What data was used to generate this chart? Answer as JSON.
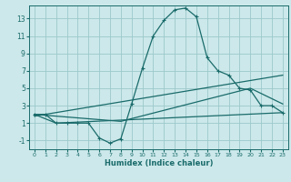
{
  "xlabel": "Humidex (Indice chaleur)",
  "bg_color": "#cce8ea",
  "grid_color": "#9cc8ca",
  "line_color": "#1a6b6b",
  "xlim": [
    -0.5,
    23.5
  ],
  "ylim": [
    -2,
    14.5
  ],
  "xticks": [
    0,
    1,
    2,
    3,
    4,
    5,
    6,
    7,
    8,
    9,
    10,
    11,
    12,
    13,
    14,
    15,
    16,
    17,
    18,
    19,
    20,
    21,
    22,
    23
  ],
  "yticks": [
    -1,
    1,
    3,
    5,
    7,
    9,
    11,
    13
  ],
  "curve1_x": [
    0,
    1,
    2,
    3,
    4,
    5,
    6,
    7,
    8,
    9,
    10,
    11,
    12,
    13,
    14,
    15,
    16,
    17,
    18,
    19,
    20,
    21,
    22,
    23
  ],
  "curve1_y": [
    2.0,
    2.0,
    1.0,
    1.0,
    1.0,
    1.0,
    -0.7,
    -1.3,
    -0.8,
    3.2,
    7.3,
    11.0,
    12.8,
    14.0,
    14.2,
    13.2,
    8.5,
    7.0,
    6.5,
    5.0,
    4.8,
    3.0,
    3.0,
    2.2
  ],
  "curve2_x": [
    0,
    2,
    23
  ],
  "curve2_y": [
    2.0,
    1.0,
    2.2
  ],
  "curve3_x": [
    0,
    8,
    20,
    23
  ],
  "curve3_y": [
    2.0,
    1.2,
    5.0,
    3.2
  ],
  "curve4_x": [
    0,
    23
  ],
  "curve4_y": [
    1.8,
    6.5
  ]
}
